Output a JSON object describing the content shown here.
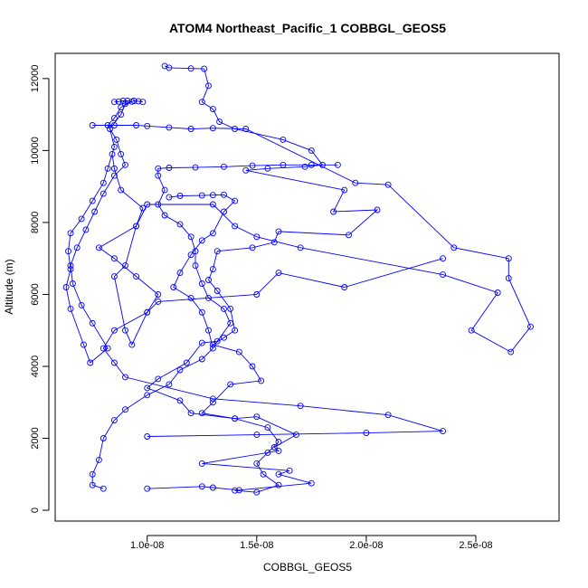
{
  "chart_data": {
    "type": "line",
    "title": "ATOM4 Northeast_Pacific_1 COBBGL_GEOS5",
    "xlabel": "COBBGL_GEOS5",
    "ylabel": "Altitude (m)",
    "xlim": [
      5.8e-09,
      2.88e-08
    ],
    "ylim": [
      -300,
      12700
    ],
    "x_ticks": [
      {
        "value": 1e-08,
        "label": "1.0e-08"
      },
      {
        "value": 1.5e-08,
        "label": "1.5e-08"
      },
      {
        "value": 2e-08,
        "label": "2.0e-08"
      },
      {
        "value": 2.5e-08,
        "label": "2.5e-08"
      }
    ],
    "y_ticks": [
      {
        "value": 0,
        "label": "0"
      },
      {
        "value": 2000,
        "label": "2000"
      },
      {
        "value": 4000,
        "label": "4000"
      },
      {
        "value": 6000,
        "label": "6000"
      },
      {
        "value": 8000,
        "label": "8000"
      },
      {
        "value": 10000,
        "label": "10000"
      },
      {
        "value": 12000,
        "label": "12000"
      }
    ],
    "grid": false,
    "colors": {
      "series": "#0000ff"
    },
    "series": [
      {
        "values": [
          [
            1e-08,
            600
          ],
          [
            1.25e-08,
            660
          ],
          [
            1.3e-08,
            630
          ],
          [
            1.42e-08,
            560
          ],
          [
            1.75e-08,
            750
          ],
          [
            1.6e-08,
            1000
          ],
          [
            1.65e-08,
            1100
          ],
          [
            1.25e-08,
            1300
          ],
          [
            1.6e-08,
            1650
          ],
          [
            1.58e-08,
            1750
          ],
          [
            1.68e-08,
            2100
          ],
          [
            1.5e-08,
            2600
          ],
          [
            1.4e-08,
            2550
          ],
          [
            1.2e-08,
            2700
          ],
          [
            1.15e-08,
            3050
          ],
          [
            1e-08,
            3400
          ],
          [
            1.05e-08,
            3650
          ],
          [
            1.18e-08,
            4100
          ],
          [
            1.25e-08,
            4650
          ],
          [
            1.32e-08,
            4700
          ],
          [
            1.38e-08,
            5200
          ],
          [
            1.35e-08,
            5600
          ],
          [
            1.28e-08,
            5900
          ],
          [
            1.25e-08,
            6300
          ],
          [
            1.22e-08,
            6800
          ],
          [
            1.22e-08,
            7200
          ],
          [
            1.2e-08,
            7600
          ],
          [
            1.15e-08,
            7950
          ],
          [
            1.08e-08,
            8200
          ],
          [
            1.05e-08,
            8500
          ],
          [
            1.08e-08,
            8900
          ],
          [
            1.05e-08,
            9300
          ],
          [
            1.05e-08,
            9500
          ],
          [
            1.1e-08,
            9520
          ],
          [
            1.22e-08,
            9530
          ],
          [
            1.35e-08,
            9550
          ],
          [
            1.48e-08,
            9580
          ],
          [
            1.62e-08,
            9600
          ],
          [
            1.75e-08,
            9600
          ],
          [
            1.87e-08,
            9600
          ]
        ]
      },
      {
        "values": [
          [
            1.08e-08,
            12350
          ],
          [
            1.1e-08,
            12300
          ],
          [
            1.2e-08,
            12280
          ],
          [
            1.26e-08,
            12270
          ],
          [
            1.28e-08,
            11800
          ],
          [
            1.25e-08,
            11350
          ],
          [
            1.3e-08,
            11150
          ],
          [
            1.33e-08,
            10800
          ],
          [
            1.4e-08,
            10600
          ],
          [
            1.62e-08,
            10300
          ],
          [
            1.75e-08,
            10000
          ],
          [
            1.8e-08,
            9600
          ],
          [
            1.72e-08,
            9550
          ],
          [
            1.55e-08,
            9500
          ],
          [
            1.45e-08,
            9450
          ],
          [
            1.9e-08,
            8900
          ],
          [
            1.85e-08,
            8300
          ],
          [
            2.05e-08,
            8350
          ],
          [
            1.92e-08,
            7650
          ],
          [
            1.6e-08,
            7750
          ],
          [
            1.58e-08,
            7450
          ],
          [
            1.48e-08,
            7300
          ],
          [
            1.32e-08,
            7200
          ],
          [
            1.3e-08,
            6700
          ],
          [
            1.28e-08,
            6400
          ],
          [
            1.32e-08,
            6100
          ],
          [
            1.38e-08,
            5600
          ],
          [
            1.4e-08,
            5000
          ],
          [
            1.35e-08,
            4800
          ],
          [
            1.3e-08,
            4600
          ],
          [
            1.42e-08,
            4400
          ],
          [
            1.48e-08,
            4000
          ],
          [
            1.52e-08,
            3600
          ],
          [
            1.38e-08,
            3500
          ],
          [
            1.3e-08,
            3000
          ],
          [
            1.25e-08,
            2700
          ],
          [
            1.4e-08,
            2550
          ],
          [
            1.55e-08,
            2300
          ],
          [
            1.6e-08,
            1900
          ],
          [
            1.55e-08,
            1600
          ],
          [
            1.5e-08,
            1300
          ],
          [
            1.53e-08,
            1000
          ],
          [
            1.6e-08,
            700
          ],
          [
            1.5e-08,
            500
          ],
          [
            1.4e-08,
            550
          ]
        ]
      },
      {
        "values": [
          [
            8.5e-09,
            11350
          ],
          [
            8.7e-09,
            11360
          ],
          [
            8.9e-09,
            11380
          ],
          [
            9.1e-09,
            11380
          ],
          [
            9.3e-09,
            11360
          ],
          [
            8.8e-09,
            11200
          ],
          [
            8.5e-09,
            10900
          ],
          [
            8.2e-09,
            10700
          ],
          [
            8.6e-09,
            10300
          ],
          [
            8.8e-09,
            9900
          ],
          [
            9e-09,
            9600
          ],
          [
            8.5e-09,
            9300
          ],
          [
            8e-09,
            8800
          ],
          [
            7.6e-09,
            8300
          ],
          [
            7.2e-09,
            7800
          ],
          [
            6.8e-09,
            7300
          ],
          [
            6.5e-09,
            6800
          ],
          [
            6.6e-09,
            6300
          ],
          [
            7e-09,
            5700
          ],
          [
            7.5e-09,
            5200
          ],
          [
            8.2e-09,
            4500
          ],
          [
            7.4e-09,
            4100
          ],
          [
            7.1e-09,
            4600
          ],
          [
            6.5e-09,
            5600
          ],
          [
            6.3e-09,
            6200
          ],
          [
            6.5e-09,
            6700
          ],
          [
            6.4e-09,
            7200
          ],
          [
            6.5e-09,
            7700
          ],
          [
            7e-09,
            8100
          ],
          [
            7.5e-09,
            8600
          ],
          [
            8e-09,
            9100
          ],
          [
            8.2e-09,
            9500
          ],
          [
            8.5e-09,
            10100
          ],
          [
            8.3e-09,
            10600
          ],
          [
            8.8e-09,
            11000
          ],
          [
            9e-09,
            11300
          ],
          [
            9.4e-09,
            11380
          ],
          [
            9.6e-09,
            11370
          ],
          [
            9.8e-09,
            11350
          ]
        ]
      },
      {
        "values": [
          [
            7.5e-09,
            10700
          ],
          [
            8.5e-09,
            10700
          ],
          [
            9.5e-09,
            10700
          ],
          [
            1e-08,
            10680
          ],
          [
            1.1e-08,
            10640
          ],
          [
            1.2e-08,
            10600
          ],
          [
            1.3e-08,
            10620
          ],
          [
            1.45e-08,
            10600
          ],
          [
            1.95e-08,
            9100
          ],
          [
            2.1e-08,
            9050
          ],
          [
            2.4e-08,
            7300
          ],
          [
            2.65e-08,
            7000
          ],
          [
            2.65e-08,
            6450
          ],
          [
            2.75e-08,
            5100
          ],
          [
            2.66e-08,
            4400
          ],
          [
            2.48e-08,
            5000
          ],
          [
            2.6e-08,
            6050
          ],
          [
            2.35e-08,
            6550
          ],
          [
            1.7e-08,
            7300
          ],
          [
            1.5e-08,
            7600
          ],
          [
            1.4e-08,
            7900
          ],
          [
            1.3e-08,
            8500
          ],
          [
            1e-08,
            8500
          ],
          [
            9.5e-09,
            7900
          ],
          [
            9e-09,
            6800
          ],
          [
            8.5e-09,
            6500
          ],
          [
            9e-09,
            5000
          ],
          [
            9.3e-09,
            4600
          ],
          [
            1e-08,
            5500
          ],
          [
            1.05e-08,
            5800
          ],
          [
            1.5e-08,
            6000
          ],
          [
            1.6e-08,
            6600
          ],
          [
            1.9e-08,
            6200
          ],
          [
            2.35e-08,
            7000
          ]
        ]
      },
      {
        "values": [
          [
            1.1e-08,
            8700
          ],
          [
            1.15e-08,
            8740
          ],
          [
            1.25e-08,
            8750
          ],
          [
            1.3e-08,
            8760
          ],
          [
            1.35e-08,
            8770
          ],
          [
            1.4e-08,
            8600
          ],
          [
            1.35e-08,
            8300
          ],
          [
            1.3e-08,
            7700
          ],
          [
            1.25e-08,
            7500
          ],
          [
            1.2e-08,
            7100
          ],
          [
            1.15e-08,
            6600
          ],
          [
            1.12e-08,
            6200
          ],
          [
            1.2e-08,
            5900
          ],
          [
            1.25e-08,
            5500
          ],
          [
            1.28e-08,
            5000
          ],
          [
            1.3e-08,
            4500
          ],
          [
            1.25e-08,
            4200
          ],
          [
            1.15e-08,
            3900
          ],
          [
            1.1e-08,
            3500
          ],
          [
            1e-08,
            3200
          ],
          [
            9e-09,
            2800
          ],
          [
            8.5e-09,
            2500
          ],
          [
            8e-09,
            2000
          ],
          [
            7.8e-09,
            1400
          ],
          [
            7.5e-09,
            1000
          ],
          [
            7.5e-09,
            700
          ],
          [
            8e-09,
            600
          ]
        ]
      },
      {
        "values": [
          [
            1e-08,
            2050
          ],
          [
            1.5e-08,
            2100
          ],
          [
            2e-08,
            2150
          ],
          [
            2.35e-08,
            2200
          ],
          [
            2.1e-08,
            2650
          ],
          [
            1.7e-08,
            2900
          ],
          [
            1.3e-08,
            3100
          ],
          [
            9e-09,
            3700
          ],
          [
            8.5e-09,
            4100
          ],
          [
            8e-09,
            4500
          ],
          [
            8.5e-09,
            5000
          ],
          [
            1e-08,
            5500
          ],
          [
            1.05e-08,
            6000
          ],
          [
            9.5e-09,
            6500
          ],
          [
            8.5e-09,
            7000
          ],
          [
            7.8e-09,
            7300
          ],
          [
            9.5e-09,
            7900
          ],
          [
            9.8e-09,
            8400
          ],
          [
            8.8e-09,
            8900
          ],
          [
            8.5e-09,
            9500
          ],
          [
            8.4e-09,
            9900
          ]
        ]
      }
    ]
  }
}
